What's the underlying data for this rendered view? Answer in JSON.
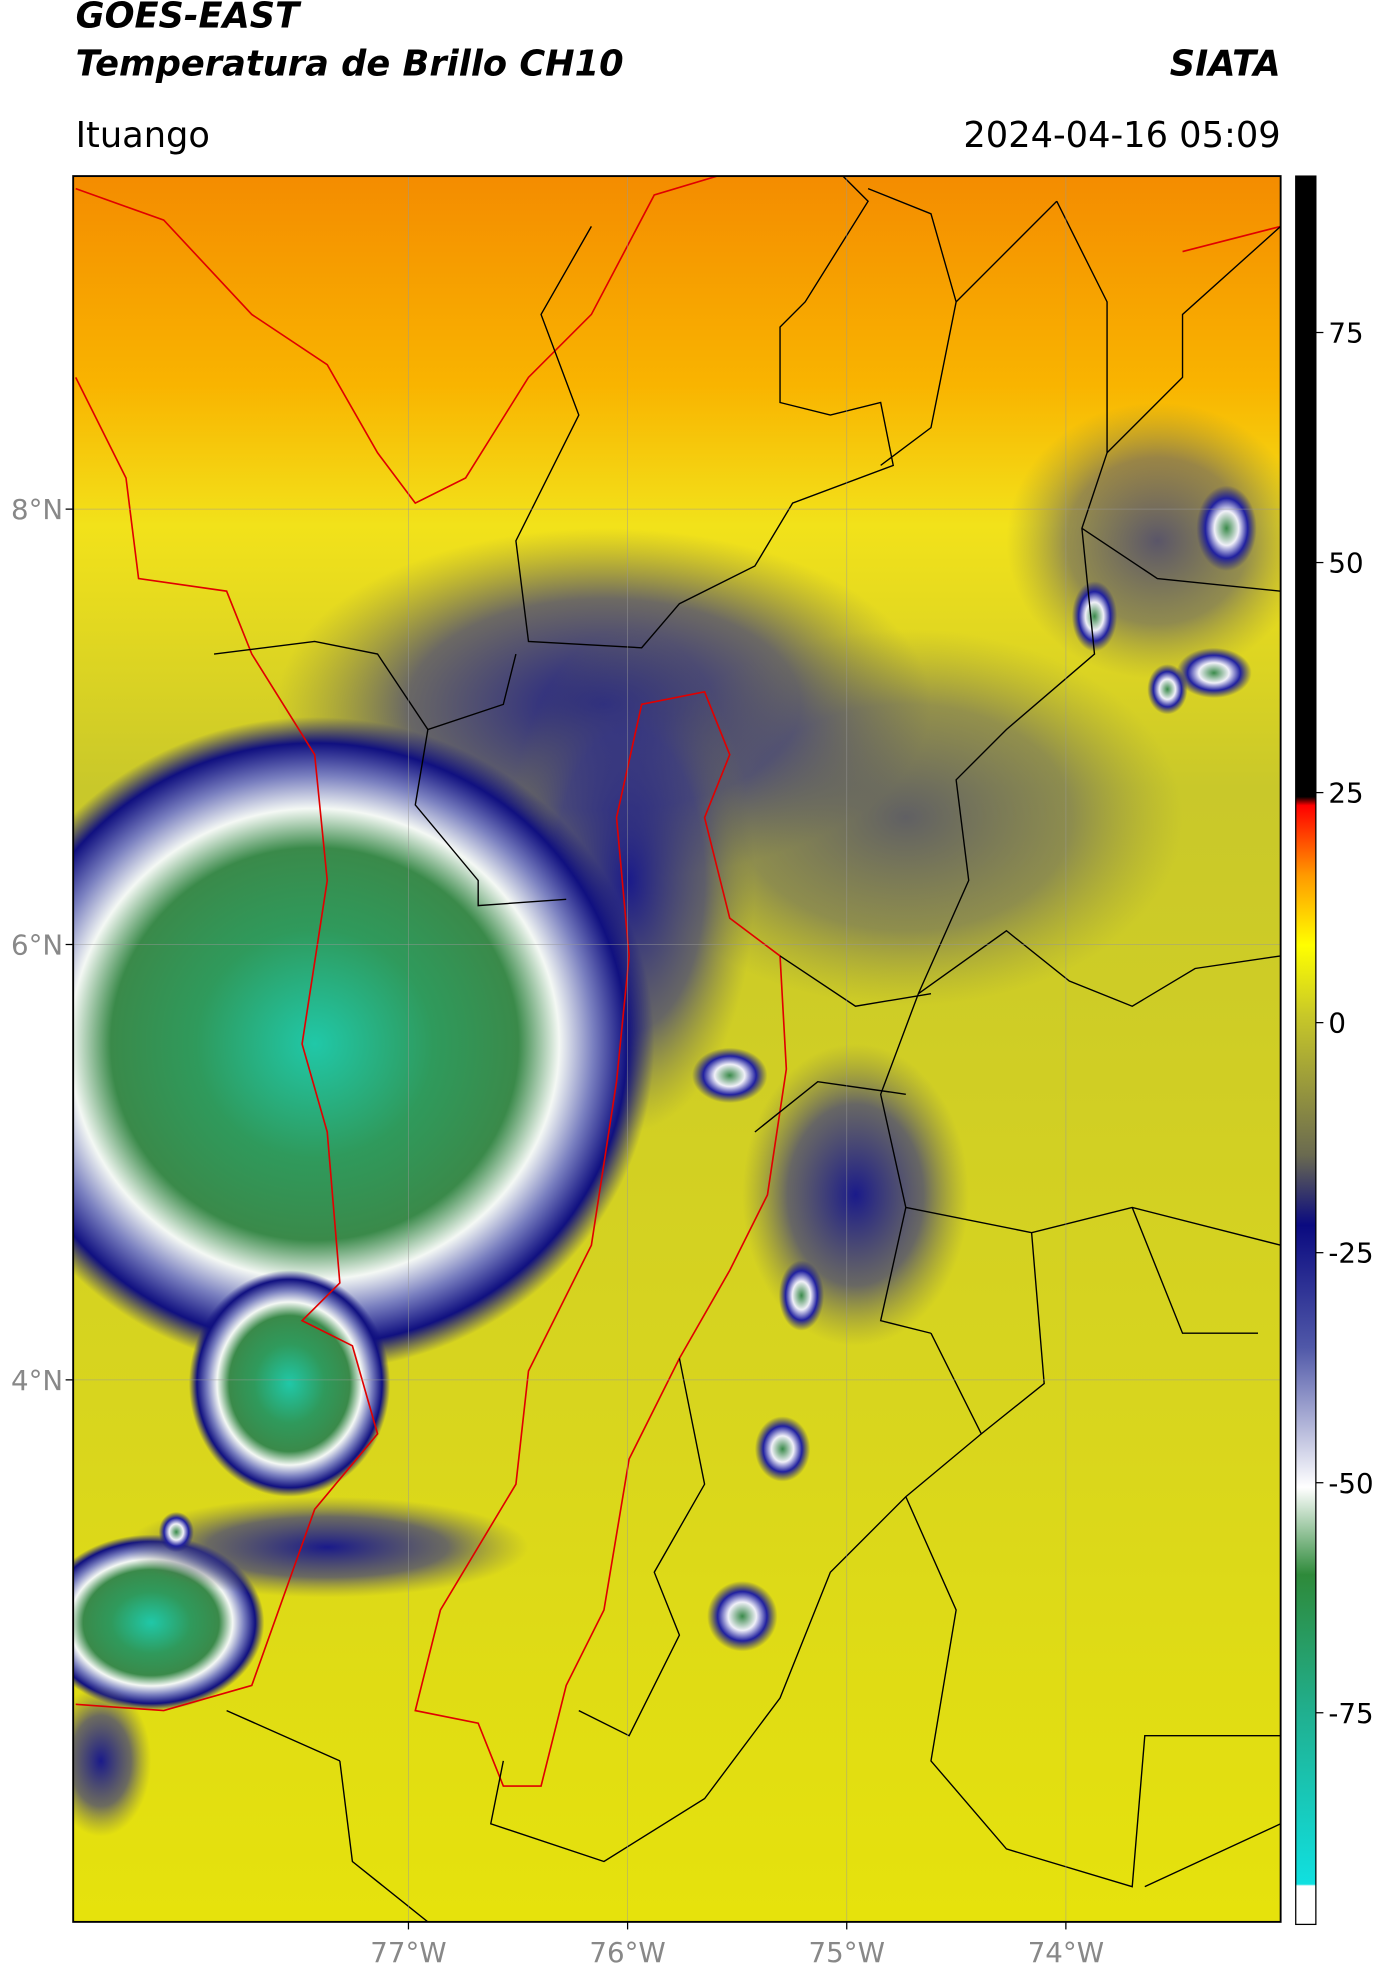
{
  "header": {
    "title_line1": "GOES-EAST",
    "title_line2": "Temperatura de Brillo CH10",
    "agency": "SIATA",
    "location": "Ituango",
    "timestamp": "2024-04-16 05:09"
  },
  "map": {
    "lat_range": [
      1.51,
      9.53
    ],
    "lon_range": [
      -78.53,
      -73.02
    ],
    "lat_ticks": [
      {
        "value": 8,
        "label": "8°N"
      },
      {
        "value": 6,
        "label": "6°N"
      },
      {
        "value": 4,
        "label": "4°N"
      }
    ],
    "lon_ticks": [
      {
        "value": -77,
        "label": "77°W"
      },
      {
        "value": -76,
        "label": "76°W"
      },
      {
        "value": -75,
        "label": "75°W"
      },
      {
        "value": -74,
        "label": "74°W"
      }
    ]
  },
  "colorbar": {
    "range": [
      -98,
      92
    ],
    "ticks": [
      75,
      50,
      25,
      0,
      -25,
      -50,
      -75
    ]
  }
}
